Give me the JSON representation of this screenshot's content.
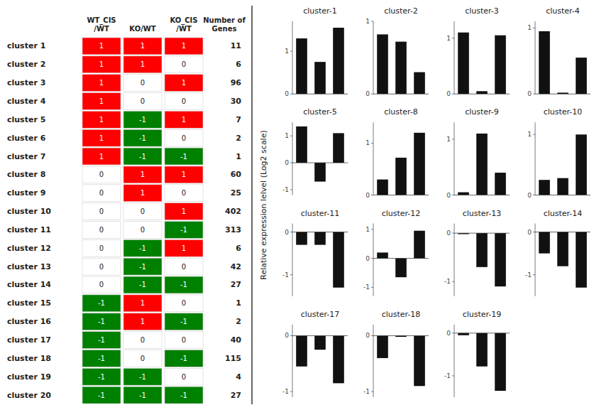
{
  "chart_data": [
    {
      "type": "heatmap",
      "categories": [
        "cluster 1",
        "cluster 2",
        "cluster 3",
        "cluster 4",
        "cluster 5",
        "cluster 6",
        "cluster 7",
        "cluster 8",
        "cluster 9",
        "cluster 10",
        "cluster 11",
        "cluster 12",
        "cluster 13",
        "cluster 14",
        "cluster 15",
        "cluster 16",
        "cluster 17",
        "cluster 18",
        "cluster 19",
        "cluster 20"
      ],
      "columns": [
        "WT_CIS\n/WT",
        "KO/WT",
        "KO_CIS\n/WT"
      ],
      "cells": [
        [
          1,
          1,
          1
        ],
        [
          1,
          1,
          0
        ],
        [
          1,
          0,
          1
        ],
        [
          1,
          0,
          0
        ],
        [
          1,
          -1,
          1
        ],
        [
          1,
          -1,
          0
        ],
        [
          1,
          -1,
          -1
        ],
        [
          0,
          1,
          1
        ],
        [
          0,
          1,
          0
        ],
        [
          0,
          0,
          1
        ],
        [
          0,
          0,
          -1
        ],
        [
          0,
          -1,
          1
        ],
        [
          0,
          -1,
          0
        ],
        [
          0,
          -1,
          -1
        ],
        [
          -1,
          1,
          0
        ],
        [
          -1,
          1,
          -1
        ],
        [
          -1,
          0,
          0
        ],
        [
          -1,
          0,
          -1
        ],
        [
          -1,
          -1,
          0
        ],
        [
          -1,
          -1,
          -1
        ]
      ],
      "levels": [
        -1,
        0,
        1
      ],
      "colors": [
        "#008000",
        "#FFFFFF",
        "#FF0000"
      ],
      "data_labels": true,
      "counts": {
        "label": "Number of\nGenes",
        "values": [
          11,
          6,
          96,
          30,
          7,
          2,
          1,
          60,
          25,
          402,
          313,
          6,
          42,
          27,
          1,
          2,
          40,
          115,
          4,
          27
        ]
      }
    },
    {
      "type": "bar",
      "title": "cluster-1",
      "ylabel": "Relative expression lelvel (Log2 scale)",
      "categories": [
        null,
        null,
        null
      ],
      "values": [
        1.3,
        0.75,
        1.55
      ],
      "color": "#111111",
      "ylim": [
        0,
        1.7
      ],
      "yticks": [
        0,
        1
      ],
      "tick_labels": "y"
    },
    {
      "type": "bar",
      "title": "cluster-2",
      "categories": [
        null,
        null,
        null
      ],
      "values": [
        0.82,
        0.72,
        0.3
      ],
      "color": "#111111",
      "ylim": [
        0,
        1.0
      ],
      "yticks": [
        0,
        1
      ],
      "tick_labels": "y"
    },
    {
      "type": "bar",
      "title": "cluster-3",
      "categories": [
        null,
        null,
        null
      ],
      "values": [
        1.1,
        0.05,
        1.05
      ],
      "color": "#111111",
      "ylim": [
        0,
        1.3
      ],
      "yticks": [
        0,
        1
      ],
      "tick_labels": "y"
    },
    {
      "type": "bar",
      "title": "cluster-4",
      "categories": [
        null,
        null,
        null
      ],
      "values": [
        0.95,
        0.02,
        0.55
      ],
      "color": "#111111",
      "ylim": [
        0,
        1.1
      ],
      "yticks": [
        0,
        1
      ],
      "tick_labels": "y"
    },
    {
      "type": "bar",
      "title": "cluster-5",
      "categories": [
        null,
        null,
        null
      ],
      "values": [
        1.35,
        -0.7,
        1.1
      ],
      "color": "#111111",
      "ylim": [
        -1.2,
        1.5
      ],
      "yticks": [
        -1,
        0,
        1
      ],
      "tick_labels": "y"
    },
    {
      "type": "bar",
      "title": "cluster-8",
      "categories": [
        null,
        null,
        null
      ],
      "values": [
        0.3,
        0.72,
        1.2
      ],
      "color": "#111111",
      "ylim": [
        0,
        1.4
      ],
      "yticks": [
        0,
        1
      ],
      "tick_labels": "y"
    },
    {
      "type": "bar",
      "title": "cluster-9",
      "categories": [
        null,
        null,
        null
      ],
      "values": [
        0.05,
        1.1,
        0.4
      ],
      "color": "#111111",
      "ylim": [
        0,
        1.3
      ],
      "yticks": [
        0,
        1
      ],
      "tick_labels": "y"
    },
    {
      "type": "bar",
      "title": "cluster-10",
      "categories": [
        null,
        null,
        null
      ],
      "values": [
        0.25,
        0.28,
        1.0
      ],
      "color": "#111111",
      "ylim": [
        0,
        1.2
      ],
      "yticks": [
        0,
        1
      ],
      "tick_labels": "y"
    },
    {
      "type": "bar",
      "title": "cluster-11",
      "categories": [
        null,
        null,
        null
      ],
      "values": [
        -0.3,
        -0.3,
        -1.3
      ],
      "color": "#111111",
      "ylim": [
        -1.5,
        0.2
      ],
      "yticks": [
        -1,
        0
      ],
      "tick_labels": "y"
    },
    {
      "type": "bar",
      "title": "cluster-12",
      "categories": [
        null,
        null,
        null
      ],
      "values": [
        0.2,
        -0.65,
        0.95
      ],
      "color": "#111111",
      "ylim": [
        -1.3,
        1.2
      ],
      "yticks": [
        -1,
        0,
        1
      ],
      "tick_labels": "y"
    },
    {
      "type": "bar",
      "title": "cluster-13",
      "categories": [
        null,
        null,
        null
      ],
      "values": [
        -0.02,
        -0.7,
        -1.1
      ],
      "color": "#111111",
      "ylim": [
        -1.3,
        0.2
      ],
      "yticks": [
        -1,
        0
      ],
      "tick_labels": "y"
    },
    {
      "type": "bar",
      "title": "cluster-14",
      "categories": [
        null,
        null,
        null
      ],
      "values": [
        -0.5,
        -0.8,
        -1.3
      ],
      "color": "#111111",
      "ylim": [
        -1.5,
        0.2
      ],
      "yticks": [
        -1,
        0
      ],
      "tick_labels": "y"
    },
    {
      "type": "bar",
      "title": "cluster-17",
      "categories": [
        null,
        null,
        null
      ],
      "values": [
        -0.55,
        -0.25,
        -0.85
      ],
      "color": "#111111",
      "ylim": [
        -1.1,
        0.2
      ],
      "yticks": [
        -1,
        0
      ],
      "tick_labels": "y"
    },
    {
      "type": "bar",
      "title": "cluster-18",
      "categories": [
        null,
        null,
        null
      ],
      "values": [
        -0.4,
        -0.02,
        -0.9
      ],
      "color": "#111111",
      "ylim": [
        -1.1,
        0.2
      ],
      "yticks": [
        -1,
        0
      ],
      "tick_labels": "y"
    },
    {
      "type": "bar",
      "title": "cluster-19",
      "categories": [
        null,
        null,
        null
      ],
      "values": [
        -0.05,
        -0.78,
        -1.35
      ],
      "color": "#111111",
      "ylim": [
        -1.5,
        0.2
      ],
      "yticks": [
        -1,
        0
      ],
      "tick_labels": "y"
    }
  ]
}
